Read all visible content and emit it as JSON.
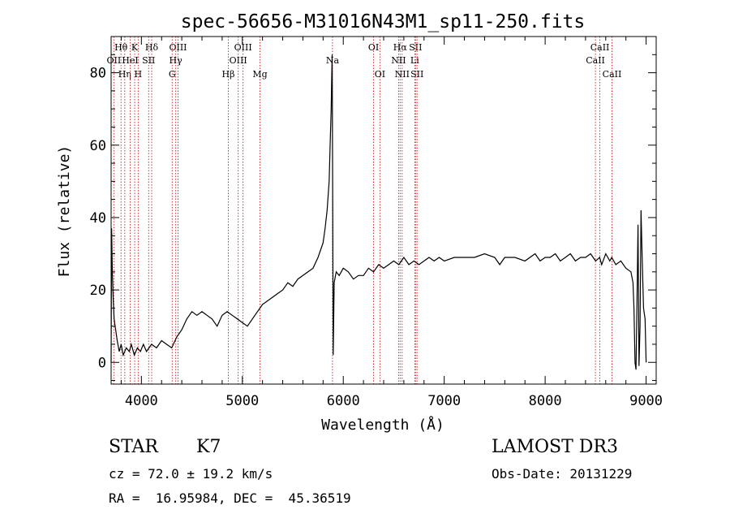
{
  "chart_data": {
    "type": "line",
    "title": "spec-56656-M31016N43M1_sp11-250.fits",
    "xlabel": "Wavelength (Å)",
    "ylabel": "Flux (relative)",
    "xlim": [
      3700,
      9100
    ],
    "ylim": [
      -6,
      90
    ],
    "xticks": [
      4000,
      5000,
      6000,
      7000,
      8000,
      9000
    ],
    "yticks": [
      0,
      20,
      40,
      60,
      80
    ],
    "series": [
      {
        "name": "flux",
        "x": [
          3700,
          3705,
          3712,
          3720,
          3730,
          3745,
          3760,
          3780,
          3800,
          3820,
          3850,
          3880,
          3900,
          3930,
          3960,
          3990,
          4020,
          4050,
          4100,
          4150,
          4200,
          4250,
          4300,
          4350,
          4400,
          4450,
          4500,
          4550,
          4600,
          4650,
          4700,
          4750,
          4800,
          4850,
          4900,
          4950,
          5000,
          5050,
          5100,
          5150,
          5200,
          5250,
          5300,
          5350,
          5400,
          5450,
          5500,
          5550,
          5600,
          5650,
          5700,
          5750,
          5800,
          5820,
          5840,
          5860,
          5870,
          5880,
          5885,
          5890,
          5895,
          5900,
          5910,
          5930,
          5960,
          6000,
          6050,
          6100,
          6150,
          6200,
          6250,
          6300,
          6350,
          6400,
          6450,
          6500,
          6550,
          6600,
          6650,
          6700,
          6750,
          6800,
          6850,
          6900,
          6950,
          7000,
          7100,
          7200,
          7300,
          7400,
          7500,
          7550,
          7600,
          7700,
          7800,
          7900,
          7950,
          8000,
          8050,
          8100,
          8150,
          8200,
          8250,
          8300,
          8350,
          8400,
          8450,
          8500,
          8540,
          8560,
          8600,
          8640,
          8660,
          8700,
          8750,
          8800,
          8850,
          8870,
          8880,
          8890,
          8900,
          8910,
          8920,
          8930,
          8940,
          8950,
          8960,
          8975,
          8990,
          9000
        ],
        "y": [
          0,
          37,
          25,
          18,
          12,
          9,
          6,
          3,
          5,
          2,
          4,
          3,
          5,
          2,
          4,
          3,
          5,
          3,
          5,
          4,
          6,
          5,
          4,
          7,
          9,
          12,
          14,
          13,
          14,
          13,
          12,
          10,
          13,
          14,
          13,
          12,
          11,
          10,
          12,
          14,
          16,
          17,
          18,
          19,
          20,
          22,
          21,
          23,
          24,
          25,
          26,
          29,
          33,
          37,
          42,
          50,
          60,
          70,
          78,
          85,
          45,
          2,
          22,
          25,
          24,
          26,
          25,
          23,
          24,
          24,
          26,
          25,
          27,
          26,
          27,
          28,
          27,
          29,
          27,
          28,
          27,
          28,
          29,
          28,
          29,
          28,
          29,
          29,
          29,
          30,
          29,
          27,
          29,
          29,
          28,
          30,
          28,
          29,
          29,
          30,
          28,
          29,
          30,
          28,
          29,
          29,
          30,
          28,
          29,
          27,
          30,
          28,
          29,
          27,
          28,
          26,
          25,
          22,
          15,
          0,
          -2,
          18,
          38,
          -1,
          10,
          42,
          30,
          15,
          12,
          0
        ]
      }
    ],
    "line_markers": [
      {
        "label": "Hθ",
        "wavelength": 3798,
        "row": 1
      },
      {
        "label": "OII",
        "wavelength": 3727,
        "row": 2
      },
      {
        "label": "Hη",
        "wavelength": 3835,
        "row": 3
      },
      {
        "label": "K",
        "wavelength": 3933,
        "row": 1
      },
      {
        "label": "HeI",
        "wavelength": 3889,
        "row": 2
      },
      {
        "label": "H",
        "wavelength": 3968,
        "row": 3
      },
      {
        "label": "Hδ",
        "wavelength": 4102,
        "row": 1
      },
      {
        "label": "SII",
        "wavelength": 4072,
        "row": 2
      },
      {
        "label": "OIII",
        "wavelength": 4363,
        "row": 1
      },
      {
        "label": "Hγ",
        "wavelength": 4340,
        "row": 2
      },
      {
        "label": "G",
        "wavelength": 4305,
        "row": 3
      },
      {
        "label": "OIII",
        "wavelength": 5007,
        "row": 1
      },
      {
        "label": "OIII",
        "wavelength": 4959,
        "row": 2
      },
      {
        "label": "Hβ",
        "wavelength": 4861,
        "row": 3
      },
      {
        "label": "Mg",
        "wavelength": 5175,
        "row": 3
      },
      {
        "label": "Na",
        "wavelength": 5893,
        "row": 2
      },
      {
        "label": "OI",
        "wavelength": 6300,
        "row": 1
      },
      {
        "label": "OI",
        "wavelength": 6363,
        "row": 3
      },
      {
        "label": "Hα",
        "wavelength": 6563,
        "row": 1
      },
      {
        "label": "NII",
        "wavelength": 6548,
        "row": 2
      },
      {
        "label": "NII",
        "wavelength": 6583,
        "row": 3
      },
      {
        "label": "SII",
        "wavelength": 6716,
        "row": 1
      },
      {
        "label": "Li",
        "wavelength": 6708,
        "row": 2
      },
      {
        "label": "SII",
        "wavelength": 6731,
        "row": 3
      },
      {
        "label": "CaII",
        "wavelength": 8542,
        "row": 1
      },
      {
        "label": "CaII",
        "wavelength": 8498,
        "row": 2
      },
      {
        "label": "CaII",
        "wavelength": 8662,
        "row": 3
      }
    ]
  },
  "info": {
    "class_label": "STAR",
    "subclass": "K7",
    "survey": "LAMOST DR3",
    "redshift": "cz = 72.0 ± 19.2 km/s",
    "obs_date": "Obs-Date: 20131229",
    "coords": "RA =  16.95984, DEC =  45.36519"
  }
}
